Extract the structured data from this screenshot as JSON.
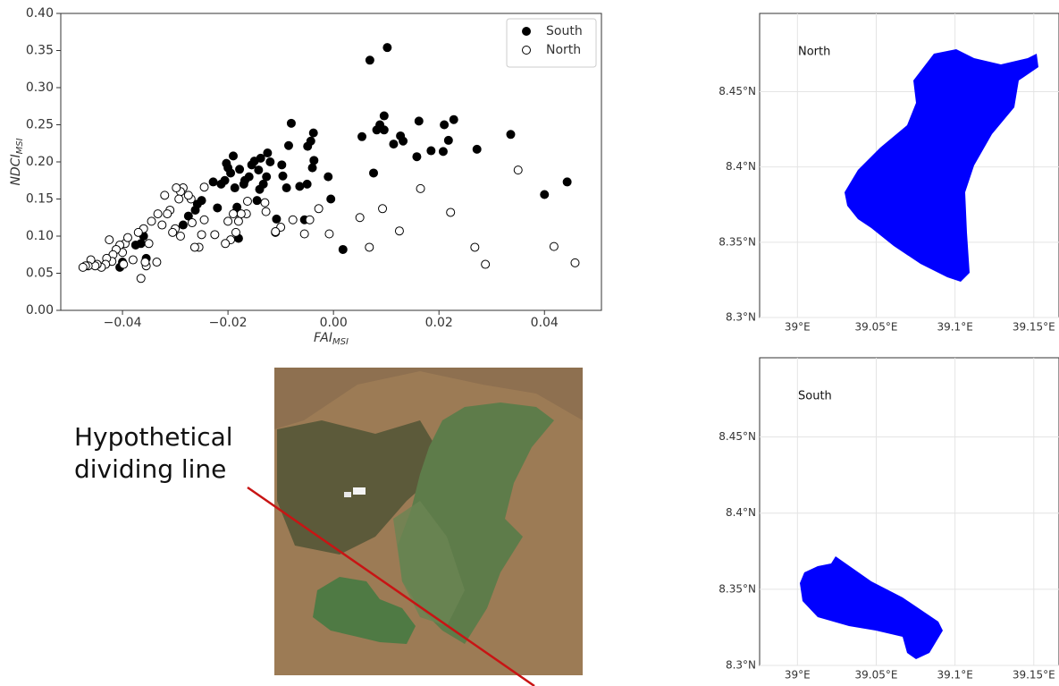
{
  "chart_data": [
    {
      "type": "scatter",
      "xlabel": "FAI",
      "xlabel_sub": "MSI",
      "ylabel": "NDCI",
      "ylabel_sub": "MSI",
      "xlim": [
        -0.0517,
        0.0508
      ],
      "ylim": [
        0,
        0.4
      ],
      "xticks": [
        {
          "value": -0.04,
          "label": "−0.04"
        },
        {
          "value": -0.02,
          "label": "−0.02"
        },
        {
          "value": 0,
          "label": "0.00"
        },
        0.02,
        0.04
      ],
      "yticks": [
        {
          "value": 0,
          "label": "0.00"
        },
        0.05,
        {
          "value": 0.1,
          "label": "0.10"
        },
        0.15,
        {
          "value": 0.2,
          "label": "0.20"
        },
        0.25,
        {
          "value": 0.3,
          "label": "0.30"
        },
        0.35,
        {
          "value": 0.4,
          "label": "0.40"
        }
      ],
      "legend": "upper right",
      "series": [
        {
          "name": "South",
          "color": "#000000",
          "edgecolor": "#000000",
          "x": [
            0.0102,
            0.0069,
            0.0096,
            0.0088,
            0.0082,
            0.0096,
            0.0054,
            0.0114,
            0.0127,
            0.0132,
            0.0158,
            0.0162,
            0.0185,
            0.0208,
            0.021,
            0.0218,
            0.0228,
            0.0272,
            0.0336,
            0.04,
            0.0443,
            0.0076,
            0.0018,
            -0.001,
            -0.0005,
            -0.0038,
            -0.0043,
            -0.0049,
            -0.004,
            -0.0037,
            -0.005,
            -0.0064,
            -0.008,
            -0.0085,
            -0.0089,
            -0.0096,
            -0.0098,
            -0.0108,
            -0.012,
            -0.0125,
            -0.0127,
            -0.0133,
            -0.0138,
            -0.0142,
            -0.014,
            -0.0145,
            -0.015,
            -0.0155,
            -0.016,
            -0.0168,
            -0.017,
            -0.0178,
            -0.018,
            -0.0183,
            -0.0185,
            -0.0187,
            -0.019,
            -0.0195,
            -0.02,
            -0.0203,
            -0.0206,
            -0.0213,
            -0.022,
            -0.0228,
            -0.025,
            -0.0258,
            -0.0262,
            -0.0275,
            -0.0285,
            -0.036,
            -0.0365,
            -0.0375,
            -0.0355,
            -0.04,
            -0.0405,
            -0.011,
            -0.0055
          ],
          "values": [
            0.354,
            0.337,
            0.262,
            0.25,
            0.243,
            0.243,
            0.234,
            0.224,
            0.235,
            0.228,
            0.207,
            0.255,
            0.215,
            0.214,
            0.25,
            0.229,
            0.257,
            0.217,
            0.237,
            0.156,
            0.173,
            0.185,
            0.082,
            0.18,
            0.15,
            0.239,
            0.228,
            0.221,
            0.192,
            0.202,
            0.17,
            0.167,
            0.252,
            0.222,
            0.165,
            0.181,
            0.196,
            0.123,
            0.2,
            0.212,
            0.18,
            0.17,
            0.205,
            0.189,
            0.163,
            0.148,
            0.201,
            0.196,
            0.18,
            0.175,
            0.17,
            0.19,
            0.097,
            0.139,
            0.132,
            0.165,
            0.208,
            0.185,
            0.192,
            0.198,
            0.175,
            0.17,
            0.138,
            0.173,
            0.148,
            0.143,
            0.135,
            0.127,
            0.115,
            0.1,
            0.09,
            0.088,
            0.07,
            0.065,
            0.058,
            0.105,
            0.122
          ]
        },
        {
          "name": "North",
          "color": "#ffffff",
          "edgecolor": "#000000",
          "x": [
            0.035,
            0.0458,
            0.0418,
            0.0288,
            0.0268,
            0.0222,
            0.0165,
            0.0125,
            0.0093,
            0.0068,
            0.005,
            -0.0008,
            -0.0028,
            -0.0045,
            -0.0055,
            -0.0077,
            -0.01,
            -0.011,
            -0.0128,
            -0.013,
            -0.0163,
            -0.0165,
            -0.0175,
            -0.018,
            -0.0185,
            -0.0195,
            -0.02,
            -0.019,
            -0.0205,
            -0.0245,
            -0.0245,
            -0.025,
            -0.0255,
            -0.0263,
            -0.0268,
            -0.027,
            -0.0275,
            -0.0285,
            -0.029,
            -0.0293,
            -0.0298,
            -0.03,
            -0.0305,
            -0.031,
            -0.0315,
            -0.032,
            -0.0325,
            -0.0333,
            -0.0335,
            -0.0345,
            -0.0355,
            -0.036,
            -0.037,
            -0.0365,
            -0.038,
            -0.0395,
            -0.039,
            -0.0398,
            -0.04,
            -0.0405,
            -0.0412,
            -0.0418,
            -0.042,
            -0.0425,
            -0.043,
            -0.0432,
            -0.044,
            -0.0448,
            -0.0452,
            -0.046,
            -0.0465,
            -0.047,
            -0.0475,
            -0.0357,
            -0.035,
            -0.029,
            -0.0225
          ],
          "values": [
            0.189,
            0.064,
            0.086,
            0.062,
            0.085,
            0.132,
            0.164,
            0.107,
            0.137,
            0.085,
            0.125,
            0.103,
            0.137,
            0.122,
            0.103,
            0.122,
            0.112,
            0.106,
            0.133,
            0.145,
            0.147,
            0.13,
            0.13,
            0.12,
            0.105,
            0.095,
            0.12,
            0.13,
            0.09,
            0.166,
            0.122,
            0.102,
            0.085,
            0.085,
            0.118,
            0.15,
            0.155,
            0.165,
            0.16,
            0.15,
            0.165,
            0.11,
            0.105,
            0.135,
            0.13,
            0.155,
            0.115,
            0.13,
            0.065,
            0.12,
            0.06,
            0.11,
            0.105,
            0.043,
            0.068,
            0.09,
            0.098,
            0.062,
            0.078,
            0.088,
            0.082,
            0.075,
            0.066,
            0.095,
            0.07,
            0.062,
            0.058,
            0.062,
            0.06,
            0.068,
            0.06,
            0.06,
            0.058,
            0.065,
            0.09,
            0.1,
            0.102
          ]
        }
      ]
    },
    {
      "type": "map",
      "title": "North",
      "xlim": [
        38.976,
        39.166
      ],
      "ylim": [
        8.3,
        8.502
      ],
      "grid": true,
      "color": "#0000ff",
      "xticks": [
        {
          "value": 39,
          "label": "39°E"
        },
        {
          "value": 39.05,
          "label": "39.05°E"
        },
        {
          "value": 39.1,
          "label": "39.1°E"
        },
        {
          "value": 39.15,
          "label": "39.15°E"
        }
      ],
      "yticks": [
        {
          "value": 8.3,
          "label": "8.3°N"
        },
        {
          "value": 8.35,
          "label": "8.35°N"
        },
        {
          "value": 8.4,
          "label": "8.4°N"
        },
        {
          "value": 8.45,
          "label": "8.45°N"
        }
      ]
    },
    {
      "type": "map",
      "title": "South",
      "xlim": [
        38.976,
        39.166
      ],
      "ylim": [
        8.3,
        8.502
      ],
      "grid": true,
      "color": "#0000ff",
      "xticks": [
        {
          "value": 39,
          "label": "39°E"
        },
        {
          "value": 39.05,
          "label": "39.05°E"
        },
        {
          "value": 39.1,
          "label": "39.1°E"
        },
        {
          "value": 39.15,
          "label": "39.15°E"
        }
      ],
      "yticks": [
        {
          "value": 8.3,
          "label": "8.3°N"
        },
        {
          "value": 8.35,
          "label": "8.35°N"
        },
        {
          "value": 8.4,
          "label": "8.4°N"
        },
        {
          "value": 8.45,
          "label": "8.45°N"
        }
      ]
    }
  ],
  "annotation": [
    "Hypothetical",
    "dividing line"
  ]
}
